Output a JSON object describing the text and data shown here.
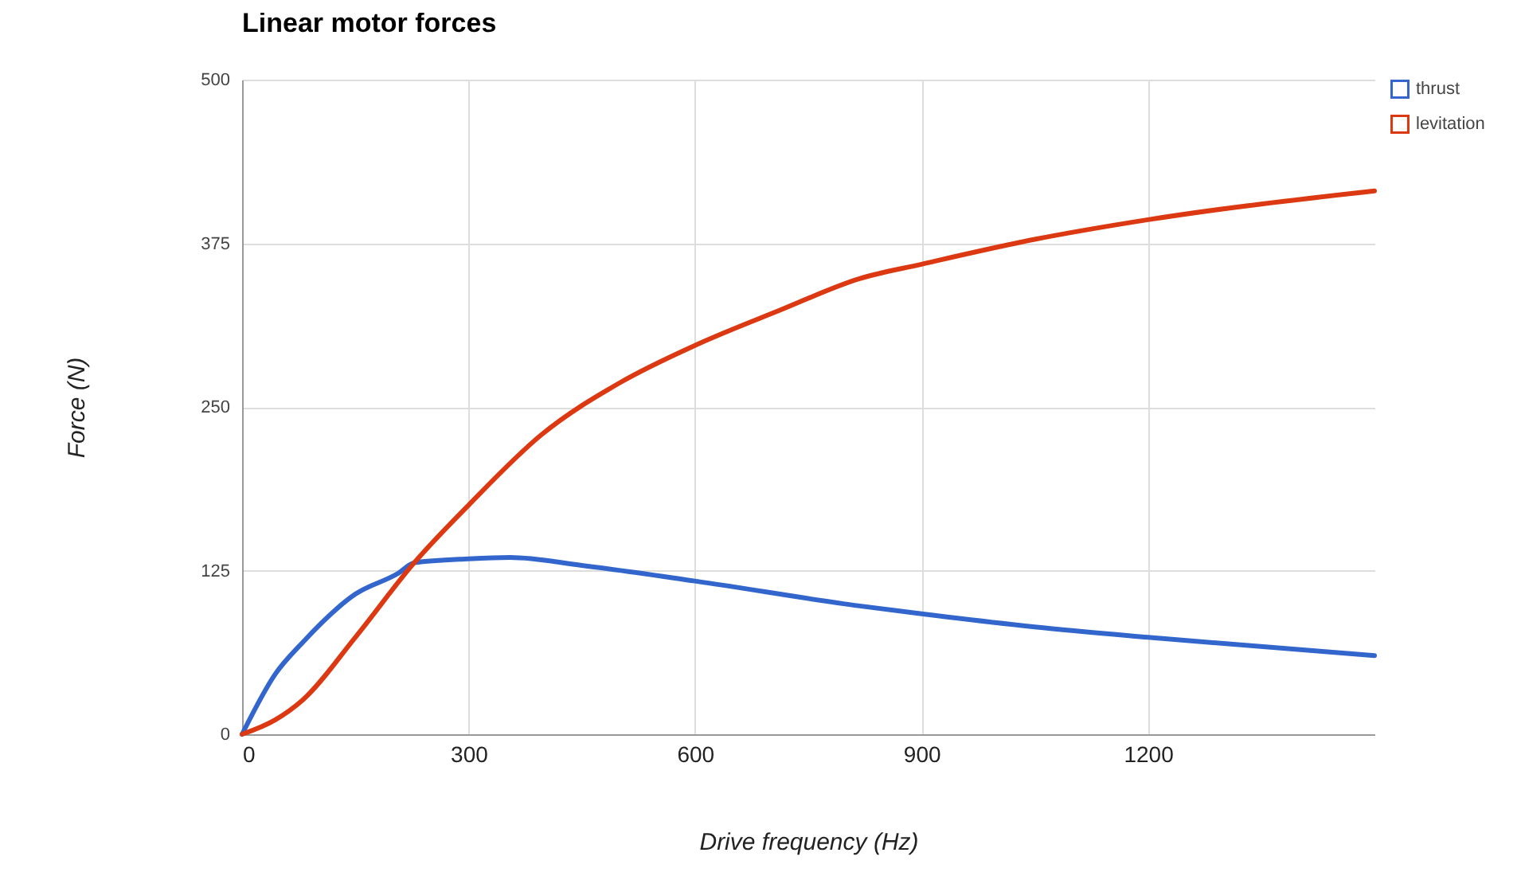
{
  "chart_data": {
    "type": "line",
    "title": "Linear motor forces",
    "xlabel": "Drive frequency (Hz)",
    "ylabel": "Force (N)",
    "xlim": [
      0,
      1500
    ],
    "xticks": [
      0,
      300,
      600,
      900,
      1200
    ],
    "ylim": [
      0,
      500
    ],
    "yticks": [
      0,
      125,
      250,
      375,
      500
    ],
    "grid": true,
    "legend": "top right",
    "marker": "none",
    "line_style": "solid",
    "series": [
      {
        "name": "thrust",
        "color": "#3366cc",
        "x": [
          0,
          44,
          80,
          150,
          207,
          228,
          300,
          355,
          450,
          600,
          818,
          900,
          1050,
          1200,
          1500
        ],
        "values": [
          0,
          46,
          70,
          107,
          123,
          131,
          134,
          135,
          129,
          117,
          98,
          92,
          82,
          74,
          60
        ]
      },
      {
        "name": "levitation",
        "color": "#dc3912",
        "x": [
          0,
          44,
          80,
          150,
          228,
          300,
          397,
          502,
          600,
          713,
          818,
          900,
          1050,
          1200,
          1500
        ],
        "values": [
          0,
          11,
          26,
          74,
          131,
          175,
          229,
          269,
          297,
          324,
          348,
          359,
          378,
          393,
          415
        ]
      }
    ]
  }
}
